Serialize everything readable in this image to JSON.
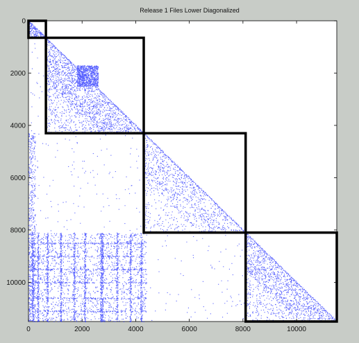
{
  "chart_data": {
    "type": "scatter",
    "title": "Release 1 Files Lower Diagonalized",
    "xlabel": "",
    "ylabel": "",
    "xlim": [
      0,
      11500
    ],
    "ylim": [
      0,
      11500
    ],
    "y_inverted": true,
    "x_ticks": [
      0,
      2000,
      4000,
      6000,
      8000,
      10000
    ],
    "y_ticks": [
      0,
      2000,
      4000,
      6000,
      8000,
      10000
    ],
    "grid": false,
    "point_color": "#1f2bff",
    "block_outline_color": "#000000",
    "diagonal_blocks": [
      {
        "start": 0,
        "end": 650
      },
      {
        "start": 650,
        "end": 4300
      },
      {
        "start": 4300,
        "end": 8100
      },
      {
        "start": 8100,
        "end": 11500
      }
    ],
    "dense_subblock": {
      "x": [
        1800,
        2600
      ],
      "y": [
        1700,
        2500
      ]
    }
  }
}
